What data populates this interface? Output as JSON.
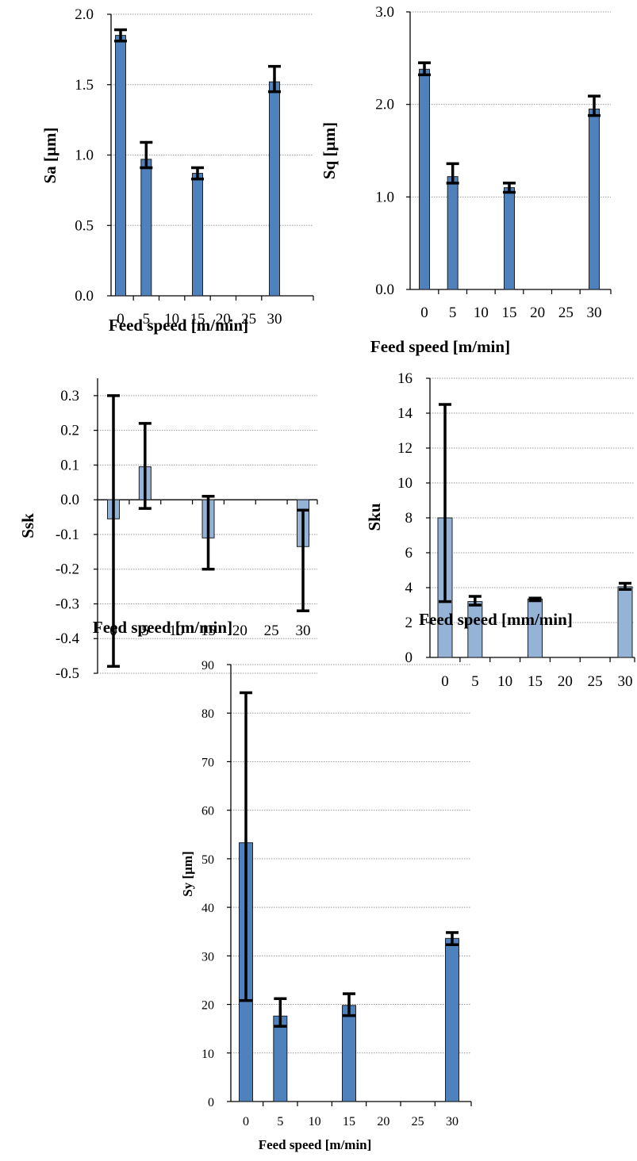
{
  "chart_data": [
    {
      "type": "bar",
      "ylabel": "Sa  [µm]",
      "xlabel": "Feed speed  [m/min]",
      "x_ticks": [
        "0",
        "5",
        "10",
        "15",
        "20",
        "25",
        "30"
      ],
      "y_ticks": [
        "0.0",
        "0.5",
        "1.0",
        "1.5",
        "2.0"
      ],
      "ylim": [
        0,
        2.0
      ],
      "grid": true,
      "color": "#4f81bd",
      "bars": [
        {
          "x": 0,
          "value": 1.85,
          "err_low": 1.81,
          "err_high": 1.89
        },
        {
          "x": 5,
          "value": 0.97,
          "err_low": 0.91,
          "err_high": 1.09
        },
        {
          "x": 15,
          "value": 0.87,
          "err_low": 0.83,
          "err_high": 0.91
        },
        {
          "x": 30,
          "value": 1.52,
          "err_low": 1.45,
          "err_high": 1.63
        }
      ]
    },
    {
      "type": "bar",
      "ylabel": "Sq  [µm]",
      "xlabel": "Feed speed [m/min]",
      "x_ticks": [
        "0",
        "5",
        "10",
        "15",
        "20",
        "25",
        "30"
      ],
      "y_ticks": [
        "0.0",
        "1.0",
        "2.0",
        "3.0"
      ],
      "ylim": [
        0,
        3.0
      ],
      "grid": true,
      "color": "#4f81bd",
      "bars": [
        {
          "x": 0,
          "value": 2.38,
          "err_low": 2.32,
          "err_high": 2.45
        },
        {
          "x": 5,
          "value": 1.22,
          "err_low": 1.15,
          "err_high": 1.36
        },
        {
          "x": 15,
          "value": 1.1,
          "err_low": 1.05,
          "err_high": 1.15
        },
        {
          "x": 30,
          "value": 1.95,
          "err_low": 1.88,
          "err_high": 2.09
        }
      ]
    },
    {
      "type": "bar",
      "ylabel": "Ssk",
      "xlabel": "Feed speed [m/min]",
      "x_ticks": [
        "0",
        "5",
        "10",
        "15",
        "20",
        "25",
        "30"
      ],
      "y_ticks": [
        "-0.5",
        "-0.4",
        "-0.3",
        "-0.2",
        "-0.1",
        "0.0",
        "0.1",
        "0.2",
        "0.3"
      ],
      "ylim": [
        -0.5,
        0.35
      ],
      "grid": true,
      "color": "#95b3d7",
      "bars": [
        {
          "x": 0,
          "value": -0.055,
          "err_low": -0.48,
          "err_high": 0.3
        },
        {
          "x": 5,
          "value": 0.095,
          "err_low": -0.025,
          "err_high": 0.22
        },
        {
          "x": 15,
          "value": -0.11,
          "err_low": -0.2,
          "err_high": 0.01
        },
        {
          "x": 30,
          "value": -0.135,
          "err_low": -0.32,
          "err_high": -0.03
        }
      ]
    },
    {
      "type": "bar",
      "ylabel": "Sku",
      "xlabel": "Feed speed [mm/min]",
      "x_ticks": [
        "0",
        "5",
        "10",
        "15",
        "20",
        "25",
        "30"
      ],
      "y_ticks": [
        "0",
        "2",
        "4",
        "6",
        "8",
        "10",
        "12",
        "14",
        "16"
      ],
      "ylim": [
        0,
        16
      ],
      "grid": true,
      "color": "#95b3d7",
      "bars": [
        {
          "x": 0,
          "value": 8.0,
          "err_low": 3.2,
          "err_high": 14.5
        },
        {
          "x": 5,
          "value": 3.2,
          "err_low": 3.0,
          "err_high": 3.5
        },
        {
          "x": 15,
          "value": 3.35,
          "err_low": 3.25,
          "err_high": 3.4
        },
        {
          "x": 30,
          "value": 4.05,
          "err_low": 3.9,
          "err_high": 4.25
        }
      ]
    },
    {
      "type": "bar",
      "ylabel": "Sy [µm]",
      "xlabel": "Feed speed  [m/min]",
      "x_ticks": [
        "0",
        "5",
        "10",
        "15",
        "20",
        "25",
        "30"
      ],
      "y_ticks": [
        "0",
        "10",
        "20",
        "30",
        "40",
        "50",
        "60",
        "70",
        "80",
        "90"
      ],
      "ylim": [
        0,
        90
      ],
      "grid": true,
      "color": "#4f81bd",
      "bars": [
        {
          "x": 0,
          "value": 53.3,
          "err_low": 20.8,
          "err_high": 84.2
        },
        {
          "x": 5,
          "value": 17.6,
          "err_low": 15.5,
          "err_high": 21.2
        },
        {
          "x": 15,
          "value": 19.8,
          "err_low": 17.7,
          "err_high": 22.2
        },
        {
          "x": 30,
          "value": 33.6,
          "err_low": 32.3,
          "err_high": 34.8
        }
      ]
    }
  ]
}
